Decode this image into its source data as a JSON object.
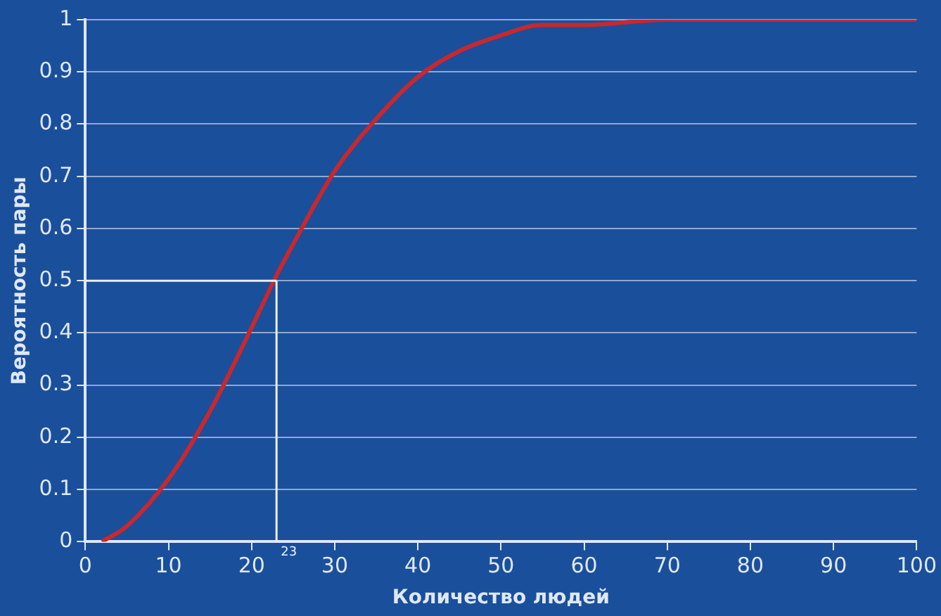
{
  "chart_data": {
    "type": "line",
    "xlabel": "Количество людей",
    "ylabel": "Вероятность пары",
    "x": [
      2,
      5,
      10,
      15,
      20,
      23,
      25,
      30,
      35,
      40,
      45,
      50,
      55,
      60,
      70,
      80,
      90,
      100
    ],
    "series": [
      {
        "color": "#c8282d",
        "values": [
          0,
          0.03,
          0.12,
          0.25,
          0.41,
          0.51,
          0.57,
          0.71,
          0.81,
          0.89,
          0.94,
          0.97,
          0.99,
          0.99,
          1,
          1,
          1,
          1
        ]
      }
    ],
    "xlim": [
      0,
      100
    ],
    "xticks": [
      0,
      10,
      20,
      30,
      40,
      50,
      60,
      70,
      80,
      90,
      100
    ],
    "ylim": [
      0,
      1
    ],
    "yticks": [
      0,
      0.1,
      0.2,
      0.3,
      0.4,
      0.5,
      0.6,
      0.7,
      0.8,
      0.9,
      1
    ],
    "ref_lines": [
      {
        "axis": "x",
        "value": 23,
        "label": "23",
        "color": "#e8eef8"
      },
      {
        "axis": "y",
        "value": 0.5,
        "color": "#e8eef8"
      }
    ],
    "grid": "y",
    "legend": false,
    "marker": "none",
    "line_style": "solid"
  }
}
